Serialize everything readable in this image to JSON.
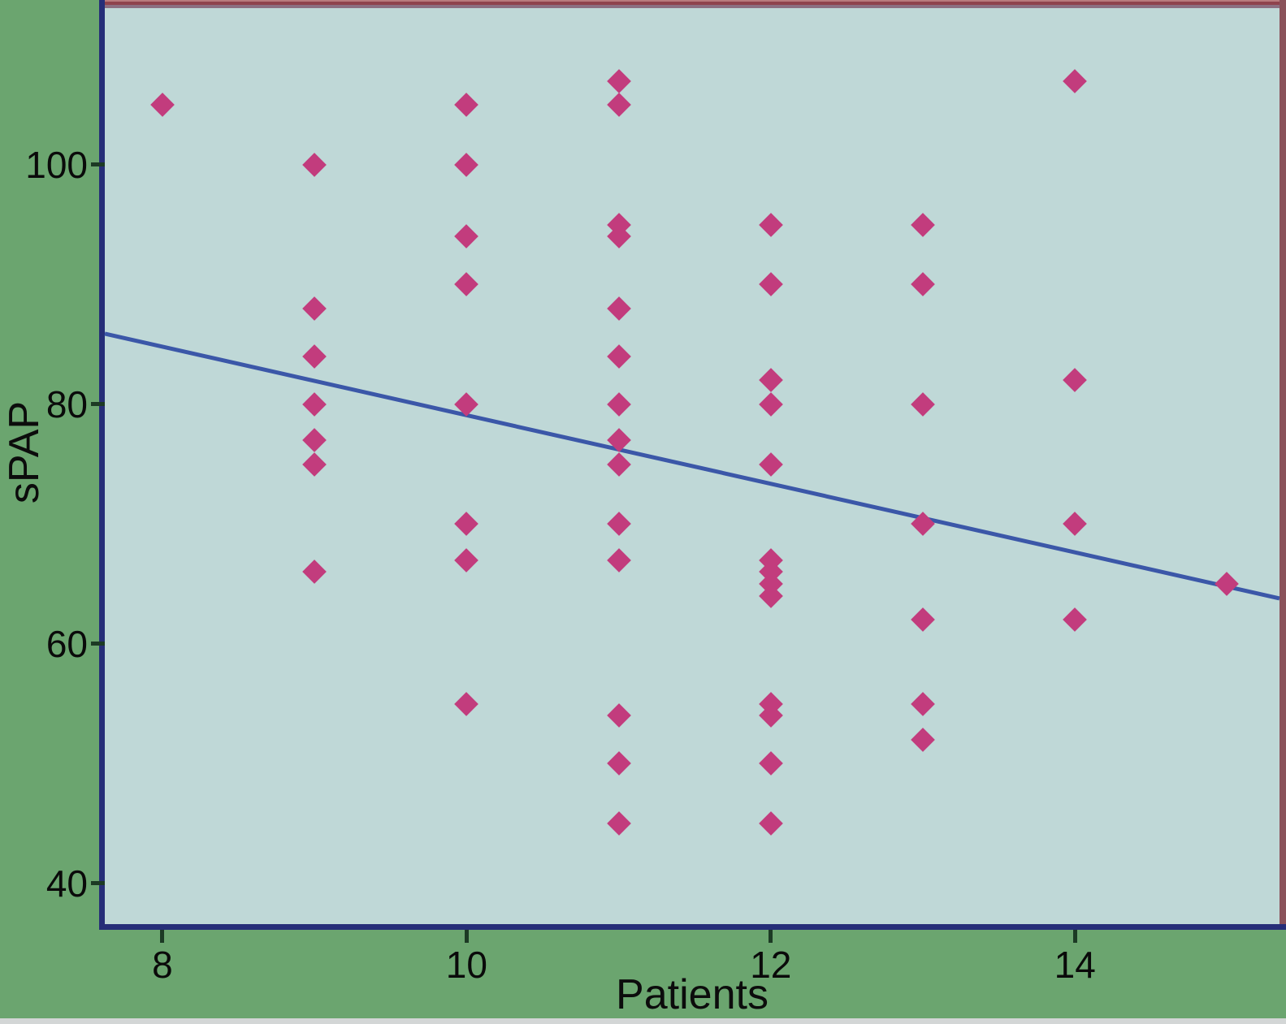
{
  "figure": {
    "xlabel": "Patients",
    "ylabel": "sPAP"
  },
  "colors": {
    "outer_background": "#6ba56f",
    "plot_background": "#bfd8d7",
    "axis_frame": "#262e78",
    "top_border_red": "#8f434d",
    "right_border_maroon": "#8a525a",
    "marker": "#c23c7d",
    "trendline": "#3b57a8",
    "tick_mark": "#1c3a24",
    "text": "#0a0a0a",
    "bottom_strip": "#d3d6d6"
  },
  "chart_data": {
    "type": "scatter",
    "title": "",
    "xlabel": "Patients",
    "ylabel": "sPAP",
    "marker": "diamond",
    "marker_color": "#c23c7d",
    "grid": false,
    "legend": false,
    "x_ticks": [
      8,
      10,
      12,
      14
    ],
    "y_ticks": [
      100,
      80,
      60,
      40
    ],
    "x_range_shown": [
      7.621,
      15.345
    ],
    "y_range_shown": [
      36.61,
      113.08
    ],
    "points": [
      [
        8,
        105
      ],
      [
        9,
        100
      ],
      [
        9,
        88
      ],
      [
        9,
        84
      ],
      [
        9,
        80
      ],
      [
        9,
        77
      ],
      [
        9,
        75
      ],
      [
        9,
        66
      ],
      [
        10,
        105
      ],
      [
        10,
        100
      ],
      [
        10,
        94
      ],
      [
        10,
        90
      ],
      [
        10,
        80
      ],
      [
        10,
        70
      ],
      [
        10,
        67
      ],
      [
        10,
        55
      ],
      [
        11,
        107
      ],
      [
        11,
        105
      ],
      [
        11,
        95
      ],
      [
        11,
        94
      ],
      [
        11,
        88
      ],
      [
        11,
        84
      ],
      [
        11,
        80
      ],
      [
        11,
        77
      ],
      [
        11,
        75
      ],
      [
        11,
        70
      ],
      [
        11,
        67
      ],
      [
        11,
        54
      ],
      [
        11,
        50
      ],
      [
        11,
        45
      ],
      [
        12,
        95
      ],
      [
        12,
        90
      ],
      [
        12,
        82
      ],
      [
        12,
        80
      ],
      [
        12,
        75
      ],
      [
        12,
        67
      ],
      [
        12,
        66
      ],
      [
        12,
        65
      ],
      [
        12,
        64
      ],
      [
        12,
        55
      ],
      [
        12,
        54
      ],
      [
        12,
        50
      ],
      [
        12,
        45
      ],
      [
        13,
        95
      ],
      [
        13,
        90
      ],
      [
        13,
        80
      ],
      [
        13,
        70
      ],
      [
        13,
        62
      ],
      [
        13,
        55
      ],
      [
        13,
        52
      ],
      [
        14,
        107
      ],
      [
        14,
        82
      ],
      [
        14,
        70
      ],
      [
        14,
        62
      ],
      [
        15,
        65
      ]
    ],
    "trendline": {
      "x1": 7.621,
      "y1": 85.9,
      "x2": 15.345,
      "y2": 63.8,
      "color": "#3b57a8"
    }
  }
}
